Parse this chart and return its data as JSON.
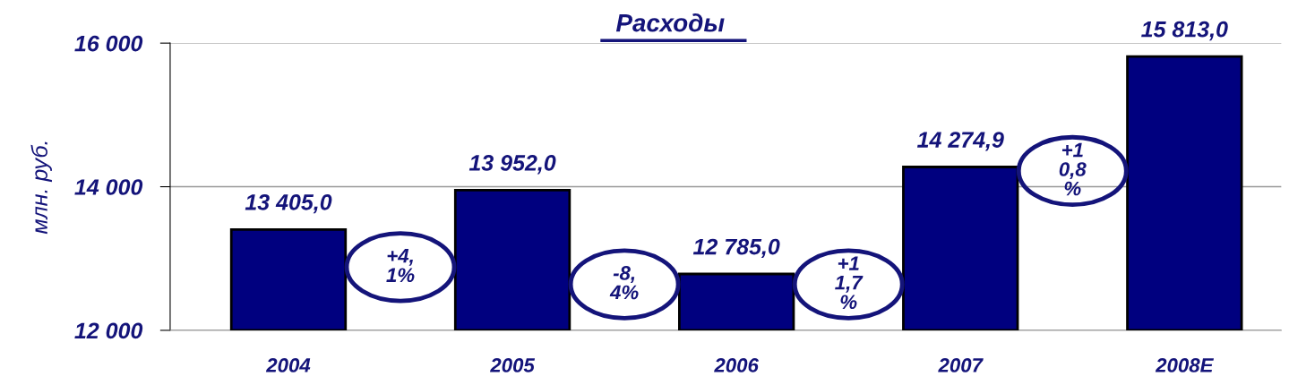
{
  "chart_data": {
    "type": "bar",
    "title": "Расходы",
    "ylabel": "млн. руб.",
    "categories": [
      "2004",
      "2005",
      "2006",
      "2007",
      "2008E"
    ],
    "values": [
      13405.0,
      13952.0,
      12785.0,
      14274.9,
      15813.0
    ],
    "value_labels": [
      "13 405,0",
      "13 952,0",
      "12 785,0",
      "14 274,9",
      "15 813,0"
    ],
    "color": "#00007f",
    "ylim": [
      12000,
      16000
    ],
    "yticks": [
      {
        "value": 12000,
        "label": "12 000"
      },
      {
        "value": 14000,
        "label": "14 000"
      },
      {
        "value": 16000,
        "label": "16 000"
      }
    ],
    "grid": "y",
    "annotations": [
      "+4,\n1%",
      "-8,\n4%",
      "+1\n1,7\n%",
      "+1\n0,8\n%"
    ]
  }
}
